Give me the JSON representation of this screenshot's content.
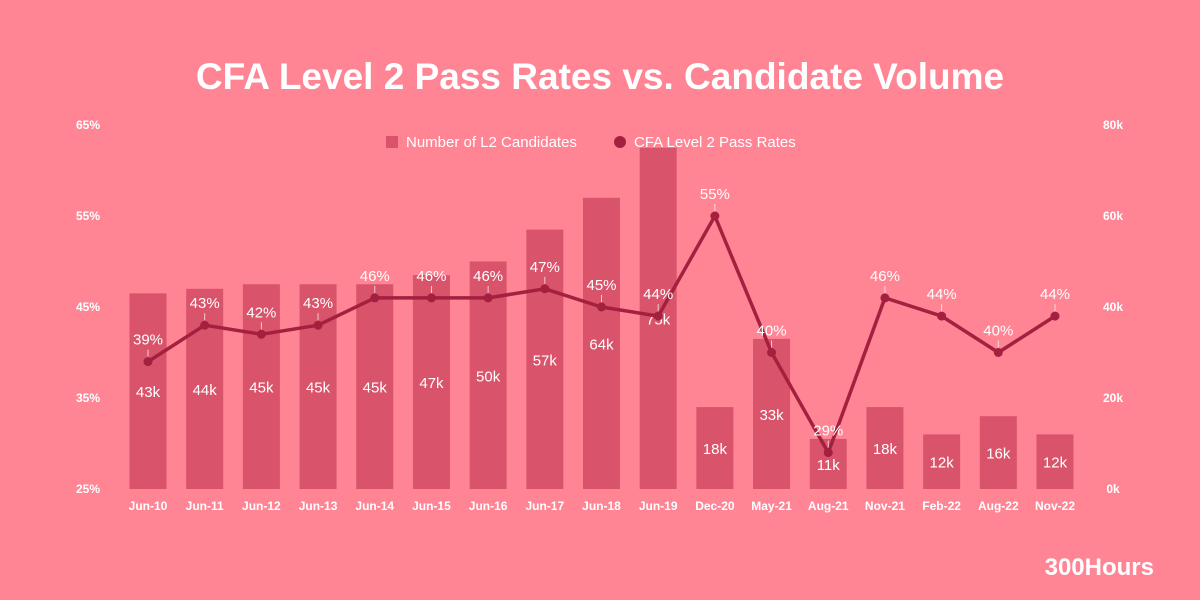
{
  "chart_data": {
    "type": "bar+line",
    "title": "CFA Level 2 Pass Rates vs. Candidate Volume",
    "categories": [
      "Jun-10",
      "Jun-11",
      "Jun-12",
      "Jun-13",
      "Jun-14",
      "Jun-15",
      "Jun-16",
      "Jun-17",
      "Jun-18",
      "Jun-19",
      "Dec-20",
      "May-21",
      "Aug-21",
      "Nov-21",
      "Feb-22",
      "Aug-22",
      "Nov-22"
    ],
    "series": [
      {
        "name": "Number of L2 Candidates",
        "type": "bar",
        "axis": "right",
        "color": "#D9536A",
        "values": [
          43,
          44,
          45,
          45,
          45,
          47,
          50,
          57,
          64,
          75,
          18,
          33,
          11,
          18,
          12,
          16,
          12
        ],
        "labels": [
          "43k",
          "44k",
          "45k",
          "45k",
          "45k",
          "47k",
          "50k",
          "57k",
          "64k",
          "75k",
          "18k",
          "33k",
          "11k",
          "18k",
          "12k",
          "16k",
          "12k"
        ]
      },
      {
        "name": "CFA Level 2 Pass Rates",
        "type": "line",
        "axis": "left",
        "color": "#A3213F",
        "values": [
          39,
          43,
          42,
          43,
          46,
          46,
          46,
          47,
          45,
          44,
          55,
          40,
          29,
          46,
          44,
          40,
          44
        ],
        "labels": [
          "39%",
          "43%",
          "42%",
          "43%",
          "46%",
          "46%",
          "46%",
          "47%",
          "45%",
          "44%",
          "55%",
          "40%",
          "29%",
          "46%",
          "44%",
          "40%",
          "44%"
        ]
      }
    ],
    "left_axis": {
      "ylim": [
        25,
        65
      ],
      "ticks": [
        "25%",
        "35%",
        "45%",
        "55%",
        "65%"
      ]
    },
    "right_axis": {
      "ylim": [
        0,
        80
      ],
      "ticks": [
        "0k",
        "20k",
        "40k",
        "60k",
        "80k"
      ]
    },
    "legend": "top-center",
    "grid": false
  },
  "background_color": "#FF8494",
  "brand": "300Hours"
}
